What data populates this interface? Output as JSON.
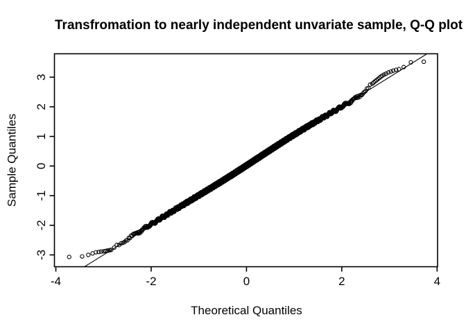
{
  "figure": {
    "background": "#ffffff",
    "foreground": "#000000"
  },
  "chart_data": {
    "type": "scatter",
    "subtype": "normal-qq-plot",
    "title": "Transfromation to nearly independent unvariate sample, Q-Q plot",
    "xlabel": "Theoretical Quantiles",
    "ylabel": "Sample Quantiles",
    "xlim": [
      -4.03,
      4.01
    ],
    "ylim": [
      -3.4,
      3.79
    ],
    "x_ticks": [
      -4,
      -2,
      0,
      2,
      4
    ],
    "y_ticks": [
      -3,
      -2,
      -1,
      0,
      1,
      2,
      3
    ],
    "grid": false,
    "legend": null,
    "marker": "open-circle",
    "marker_radius_px": 2.6,
    "reference_line": {
      "slope": 1,
      "intercept": 0
    },
    "dense_band": {
      "note": "solid-black mass of thousands of overlapping open circles lying along y = x",
      "x_min": -2.81,
      "x_max": 2.62,
      "render_points": 2000,
      "scatter_amplitude": 0.06,
      "right_end_lift": 0.13
    },
    "lower_tail_points": [
      [
        -3.72,
        -3.07
      ],
      [
        -3.45,
        -3.05
      ],
      [
        -3.32,
        -3.0
      ],
      [
        -3.23,
        -2.95
      ],
      [
        -3.16,
        -2.91
      ],
      [
        -3.1,
        -2.9
      ],
      [
        -3.05,
        -2.89
      ],
      [
        -3.0,
        -2.88
      ],
      [
        -2.96,
        -2.87
      ],
      [
        -2.93,
        -2.86
      ],
      [
        -2.9,
        -2.85
      ],
      [
        -2.87,
        -2.84
      ],
      [
        -2.84,
        -2.83
      ]
    ],
    "upper_tail_points": [
      [
        2.64,
        2.78
      ],
      [
        2.67,
        2.82
      ],
      [
        2.7,
        2.86
      ],
      [
        2.73,
        2.9
      ],
      [
        2.76,
        2.94
      ],
      [
        2.79,
        2.98
      ],
      [
        2.82,
        3.02
      ],
      [
        2.85,
        3.05
      ],
      [
        2.89,
        3.09
      ],
      [
        2.93,
        3.12
      ],
      [
        2.98,
        3.16
      ],
      [
        3.03,
        3.19
      ],
      [
        3.08,
        3.22
      ],
      [
        3.14,
        3.25
      ],
      [
        3.2,
        3.27
      ],
      [
        3.3,
        3.34
      ],
      [
        3.45,
        3.5
      ],
      [
        3.72,
        3.52
      ]
    ]
  }
}
